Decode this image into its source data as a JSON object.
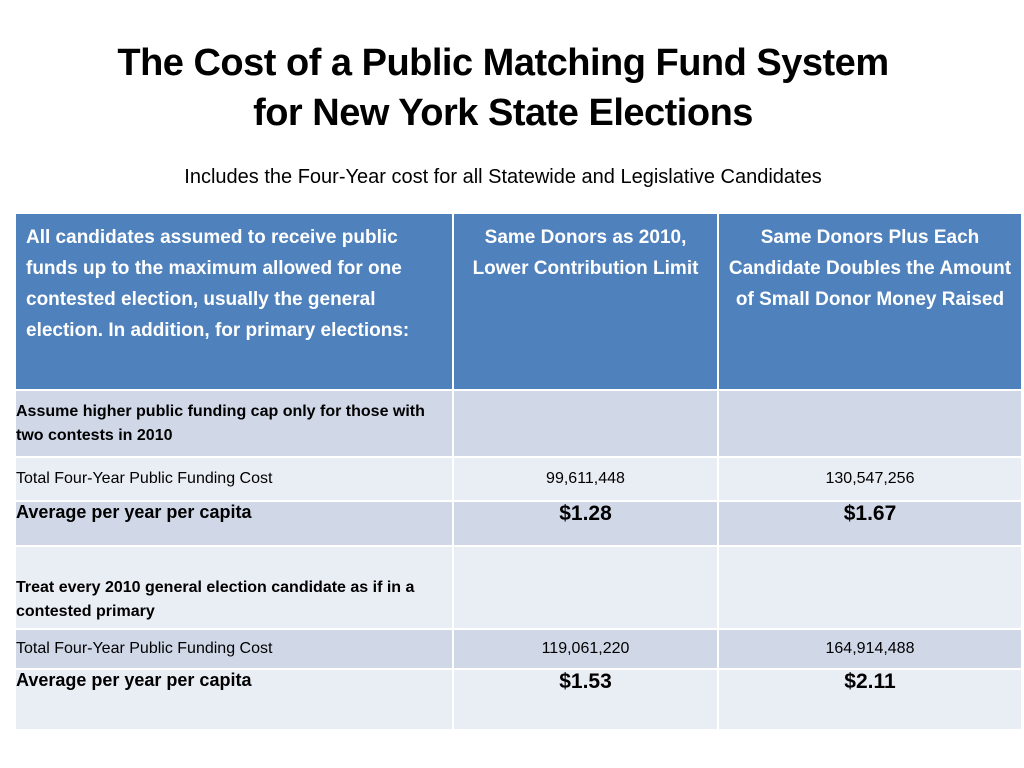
{
  "slide": {
    "title_line1": "The Cost of a Public Matching Fund System",
    "title_line2": "for New York State Elections",
    "subtitle": "Includes the Four-Year cost for all Statewide and Legislative Candidates"
  },
  "table": {
    "header": {
      "col1": "All candidates assumed to receive public funds up to the maximum allowed for one contested election, usually the general election. In addition, for primary elections:",
      "col2": "Same Donors as 2010, Lower Contribution Limit",
      "col3": "Same Donors Plus Each Candidate Doubles the Amount of Small Donor Money Raised"
    },
    "section1": {
      "label": "Assume higher public funding cap only for those with two contests in 2010",
      "total_label": "Total Four-Year Public Funding Cost",
      "total_col2": "99,611,448",
      "total_col3": "130,547,256",
      "avg_label": "Average per year per capita",
      "avg_col2": "$1.28",
      "avg_col3": "$1.67"
    },
    "section2": {
      "label": "Treat every 2010 general election candidate as if in a contested primary",
      "total_label": "Total Four-Year Public Funding Cost",
      "total_col2": "119,061,220",
      "total_col3": "164,914,488",
      "avg_label": "Average per year per capita",
      "avg_col2": "$1.53",
      "avg_col3": "$2.11"
    },
    "colors": {
      "header_bg": "#4f81bd",
      "band_bg": "#d0d8e8",
      "light_bg": "#e9edf4"
    }
  }
}
